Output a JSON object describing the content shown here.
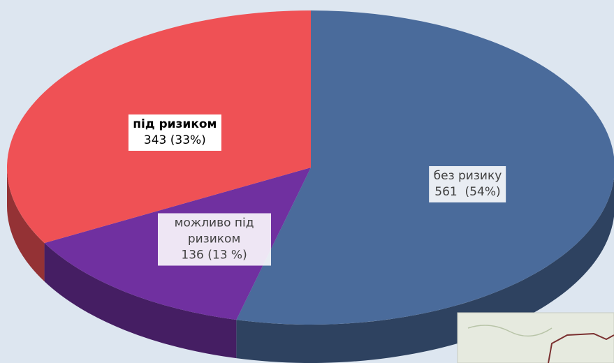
{
  "chart_data": {
    "type": "pie",
    "categories": [
      "без ризику",
      "можливо під ризиком",
      "під ризиком"
    ],
    "values": [
      561,
      136,
      343
    ],
    "value_labels": [
      "561  (54%)",
      "136 (13 %)",
      "343 (33%)"
    ],
    "colors": [
      "#4a6b9b",
      "#7030a0",
      "#ef5155"
    ]
  }
}
